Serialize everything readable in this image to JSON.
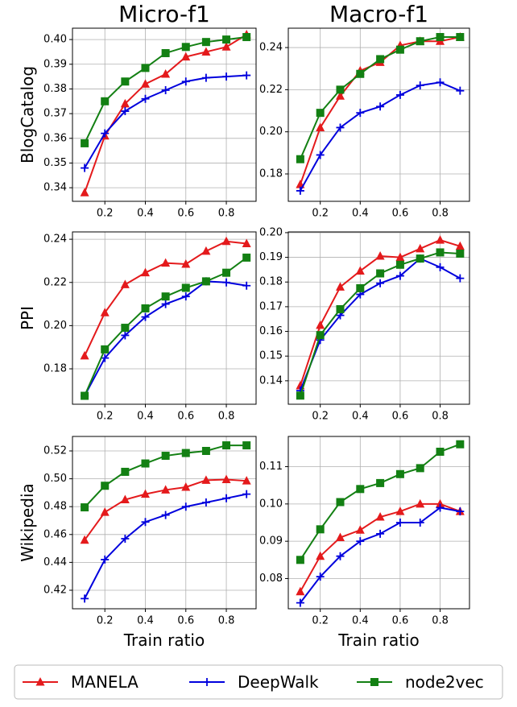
{
  "legend": [
    {
      "name": "MANELA",
      "color": "#e41a1c",
      "marker": "triangle"
    },
    {
      "name": "DeepWalk",
      "color": "#0000dd",
      "marker": "plus"
    },
    {
      "name": "node2vec",
      "color": "#138013",
      "marker": "square"
    }
  ],
  "chart_data": [
    {
      "type": "line",
      "title": "Micro-f1",
      "ylabel": "BlogCatalog",
      "grid": true,
      "x": [
        0.1,
        0.2,
        0.3,
        0.4,
        0.5,
        0.6,
        0.7,
        0.8,
        0.9
      ],
      "xlim": [
        0.04,
        0.947
      ],
      "xticks": [
        0.2,
        0.4,
        0.6,
        0.8
      ],
      "ylim": [
        0.3345,
        0.4046
      ],
      "yticks": [
        0.34,
        0.35,
        0.36,
        0.37,
        0.38,
        0.39,
        {
          "value": 0.4,
          "label": "0.40"
        }
      ],
      "series": [
        {
          "values": [
            0.338,
            0.361,
            0.374,
            0.382,
            0.386,
            0.393,
            0.395,
            0.397,
            0.402
          ]
        },
        {
          "values": [
            0.348,
            0.362,
            0.371,
            0.376,
            0.3795,
            0.383,
            0.3845,
            0.385,
            0.3855
          ]
        },
        {
          "values": [
            0.358,
            0.375,
            0.383,
            0.3885,
            0.3945,
            0.397,
            0.399,
            0.4,
            0.401
          ]
        }
      ]
    },
    {
      "type": "line",
      "title": "Macro-f1",
      "grid": true,
      "x": [
        0.1,
        0.2,
        0.3,
        0.4,
        0.5,
        0.6,
        0.7,
        0.8,
        0.9
      ],
      "xlim": [
        0.04,
        0.947
      ],
      "xticks": [
        0.2,
        0.4,
        0.6,
        0.8
      ],
      "ylim": [
        0.167,
        0.2492
      ],
      "yticks": [
        0.18,
        {
          "value": 0.2,
          "label": "0.20"
        },
        0.22,
        0.24
      ],
      "series": [
        {
          "values": [
            0.175,
            0.202,
            0.217,
            0.229,
            0.233,
            0.241,
            0.243,
            0.243,
            0.245
          ]
        },
        {
          "values": [
            0.172,
            0.189,
            0.202,
            0.209,
            0.212,
            0.2175,
            0.222,
            0.2235,
            0.2195
          ]
        },
        {
          "values": [
            0.187,
            0.209,
            0.22,
            0.2275,
            0.2345,
            0.239,
            0.243,
            0.245,
            0.245
          ]
        }
      ]
    },
    {
      "type": "line",
      "ylabel": "PPI",
      "grid": true,
      "x": [
        0.1,
        0.2,
        0.3,
        0.4,
        0.5,
        0.6,
        0.7,
        0.8,
        0.9
      ],
      "xlim": [
        0.04,
        0.947
      ],
      "xticks": [
        0.2,
        0.4,
        0.6,
        0.8
      ],
      "ylim": [
        0.1636,
        0.2434
      ],
      "yticks": [
        0.18,
        {
          "value": 0.2,
          "label": "0.20"
        },
        0.22,
        0.24
      ],
      "series": [
        {
          "values": [
            0.186,
            0.206,
            0.219,
            0.2245,
            0.229,
            0.2285,
            0.2345,
            0.239,
            0.238
          ]
        },
        {
          "values": [
            0.1675,
            0.185,
            0.1955,
            0.204,
            0.21,
            0.2135,
            0.2205,
            0.22,
            0.2185
          ]
        },
        {
          "values": [
            0.1675,
            0.189,
            0.199,
            0.208,
            0.2135,
            0.2175,
            0.2205,
            0.2245,
            0.2315
          ]
        }
      ]
    },
    {
      "type": "line",
      "grid": true,
      "x": [
        0.1,
        0.2,
        0.3,
        0.4,
        0.5,
        0.6,
        0.7,
        0.8,
        0.9
      ],
      "xlim": [
        0.04,
        0.947
      ],
      "xticks": [
        0.2,
        0.4,
        0.6,
        0.8
      ],
      "ylim": [
        0.1305,
        0.2003
      ],
      "yticks": [
        0.14,
        0.15,
        0.16,
        0.17,
        0.18,
        0.19,
        {
          "value": 0.2,
          "label": "0.20"
        }
      ],
      "series": [
        {
          "values": [
            0.138,
            0.1625,
            0.178,
            0.1845,
            0.1905,
            0.19,
            0.1935,
            0.197,
            0.1945
          ]
        },
        {
          "values": [
            0.136,
            0.1565,
            0.1665,
            0.175,
            0.1795,
            0.1825,
            0.1895,
            0.186,
            0.1815
          ]
        },
        {
          "values": [
            0.134,
            0.1585,
            0.169,
            0.1775,
            0.1835,
            0.187,
            0.1895,
            0.192,
            0.1915
          ]
        }
      ]
    },
    {
      "type": "line",
      "ylabel": "Wikipedia",
      "xlabel": "Train ratio",
      "grid": true,
      "x": [
        0.1,
        0.2,
        0.3,
        0.4,
        0.5,
        0.6,
        0.7,
        0.8,
        0.9
      ],
      "xlim": [
        0.04,
        0.947
      ],
      "xticks": [
        0.2,
        0.4,
        0.6,
        0.8
      ],
      "ylim": [
        0.4067,
        0.5304
      ],
      "yticks": [
        0.42,
        0.44,
        0.46,
        0.48,
        {
          "value": 0.5,
          "label": "0.50"
        },
        0.52
      ],
      "series": [
        {
          "values": [
            0.456,
            0.476,
            0.485,
            0.489,
            0.492,
            0.494,
            0.499,
            0.4995,
            0.4985
          ]
        },
        {
          "values": [
            0.414,
            0.442,
            0.457,
            0.469,
            0.474,
            0.48,
            0.483,
            0.486,
            0.489
          ]
        },
        {
          "values": [
            0.4795,
            0.495,
            0.505,
            0.511,
            0.5165,
            0.5185,
            0.52,
            0.524,
            0.524
          ]
        }
      ]
    },
    {
      "type": "line",
      "xlabel": "Train ratio",
      "grid": true,
      "x": [
        0.1,
        0.2,
        0.3,
        0.4,
        0.5,
        0.6,
        0.7,
        0.8,
        0.9
      ],
      "xlim": [
        0.04,
        0.947
      ],
      "xticks": [
        0.2,
        0.4,
        0.6,
        0.8
      ],
      "ylim": [
        0.0719,
        0.1181
      ],
      "yticks": [
        0.08,
        0.09,
        {
          "value": 0.1,
          "label": "0.10"
        },
        0.11
      ],
      "series": [
        {
          "values": [
            0.0765,
            0.086,
            0.091,
            0.093,
            0.0965,
            0.098,
            0.1,
            0.1,
            0.098
          ]
        },
        {
          "values": [
            0.0735,
            0.0805,
            0.086,
            0.09,
            0.092,
            0.095,
            0.095,
            0.099,
            0.098
          ]
        },
        {
          "values": [
            0.085,
            0.0932,
            0.1005,
            0.104,
            0.1056,
            0.108,
            0.1096,
            0.114,
            0.116
          ]
        }
      ]
    }
  ]
}
